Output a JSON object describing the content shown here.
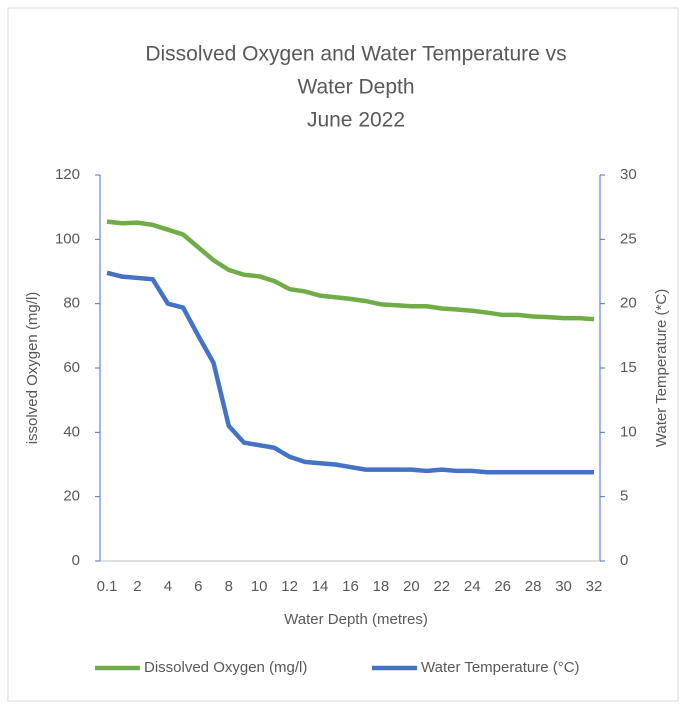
{
  "chart_data": {
    "type": "line",
    "title": [
      "Dissolved Oxygen and Water Temperature vs",
      "Water Depth",
      "June 2022"
    ],
    "x_label": "Water Depth (metres)",
    "y_label": "issolved Oxygen (mg/l)",
    "y2_label": "Water Temperature (*C)",
    "categories": [
      "0.1",
      null,
      "2",
      null,
      "4",
      null,
      "6",
      null,
      "8",
      null,
      "10",
      null,
      "12",
      null,
      "14",
      null,
      "16",
      null,
      "18",
      null,
      "20",
      null,
      "22",
      null,
      "24",
      null,
      "26",
      null,
      "28",
      null,
      "30",
      null,
      "32"
    ],
    "series": [
      {
        "name": "Dissolved Oxygen (mg/l)",
        "color": "#70ad47",
        "values": [
          105.5,
          105,
          105.2,
          104.5,
          103,
          101.5,
          97.5,
          93.5,
          90.5,
          89,
          88.5,
          87,
          84.5,
          83.8,
          82.5,
          82,
          81.5,
          80.8,
          79.8,
          79.5,
          79.2,
          79.2,
          78.5,
          78.2,
          77.8,
          77.2,
          76.5,
          76.5,
          76,
          75.8,
          75.5,
          75.5,
          75.2
        ]
      },
      {
        "name": "Water Temperature (°C)",
        "color": "#4472c4",
        "axis": "y2",
        "values": [
          22.4,
          22.1,
          22.0,
          21.9,
          20.0,
          19.7,
          17.5,
          15.4,
          10.5,
          9.2,
          9.0,
          8.8,
          8.1,
          7.7,
          7.6,
          7.5,
          7.3,
          7.1,
          7.1,
          7.1,
          7.1,
          7.0,
          7.1,
          7.0,
          7.0,
          6.9,
          6.9,
          6.9,
          6.9,
          6.9,
          6.9,
          6.9,
          6.9
        ]
      }
    ],
    "ylim": [
      0,
      120
    ],
    "yticks": [
      0,
      20,
      40,
      60,
      80,
      100,
      120
    ],
    "y2lim": [
      0,
      30
    ],
    "y2ticks": [
      0,
      5,
      10,
      15,
      20,
      25,
      30
    ],
    "legend": "bottom"
  }
}
